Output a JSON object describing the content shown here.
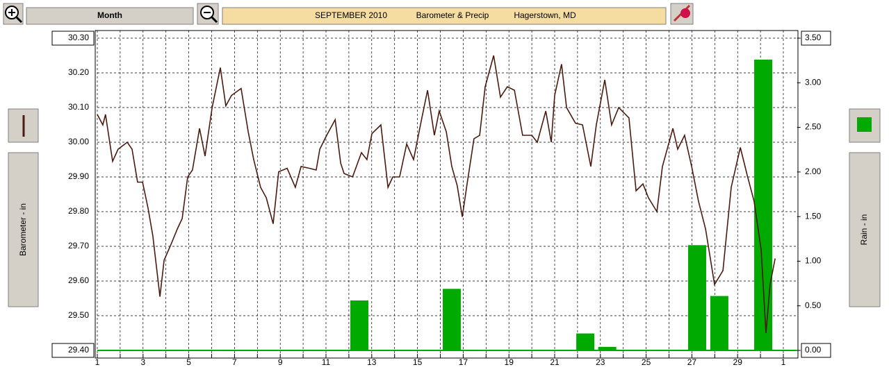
{
  "chart_data": {
    "type": "combo",
    "toolbar_label": "Month",
    "title": "SEPTEMBER  2010",
    "subtitle": "Barometer & Precip",
    "location": "Hagerstown, MD",
    "ylabel": "Barometer - in",
    "y2label": "Rain - in",
    "xlim": [
      1,
      31.6
    ],
    "xticks": [
      1,
      3,
      5,
      7,
      9,
      11,
      13,
      15,
      17,
      19,
      21,
      23,
      25,
      27,
      29,
      {
        "value": 31,
        "label": "1"
      }
    ],
    "xminor_ticks": [
      2,
      4,
      6,
      8,
      10,
      12,
      14,
      16,
      18,
      20,
      22,
      24,
      26,
      28,
      30
    ],
    "ylim": [
      29.4,
      30.3
    ],
    "yticks": [
      {
        "value": 29.4,
        "label": "29.40"
      },
      {
        "value": 29.5,
        "label": "29.50"
      },
      {
        "value": 29.6,
        "label": "29.60"
      },
      {
        "value": 29.7,
        "label": "29.70"
      },
      {
        "value": 29.8,
        "label": "29.80"
      },
      {
        "value": 29.9,
        "label": "29.90"
      },
      {
        "value": 30.0,
        "label": "30.00"
      },
      {
        "value": 30.1,
        "label": "30.10"
      },
      {
        "value": 30.2,
        "label": "30.20"
      },
      {
        "value": 30.3,
        "label": "30.30"
      }
    ],
    "y2lim": [
      0,
      3.5
    ],
    "y2ticks": [
      {
        "value": 0,
        "label": "0.00"
      },
      {
        "value": 0.5,
        "label": "0.50"
      },
      {
        "value": 1,
        "label": "1.00"
      },
      {
        "value": 1.5,
        "label": "1.50"
      },
      {
        "value": 2,
        "label": "2.00"
      },
      {
        "value": 2.5,
        "label": "2.50"
      },
      {
        "value": 3,
        "label": "3.00"
      },
      {
        "value": 3.5,
        "label": "3.50"
      }
    ],
    "grid": true,
    "series": [
      {
        "type": "line",
        "color": "#4a1a10",
        "x": [
          1.0,
          1.24,
          1.36,
          1.67,
          1.91,
          2.31,
          2.52,
          2.76,
          2.98,
          3.22,
          3.43,
          3.74,
          3.92,
          4.22,
          4.5,
          4.71,
          4.95,
          5.16,
          5.47,
          5.71,
          6.02,
          6.38,
          6.62,
          6.87,
          7.29,
          7.6,
          7.84,
          8.14,
          8.39,
          8.69,
          8.93,
          9.3,
          9.66,
          9.91,
          10.27,
          10.57,
          10.73,
          11.03,
          11.4,
          11.64,
          11.79,
          12.16,
          12.55,
          12.79,
          13.01,
          13.4,
          13.71,
          13.92,
          14.22,
          14.53,
          14.83,
          15.13,
          15.44,
          15.74,
          15.95,
          16.26,
          16.5,
          16.74,
          16.96,
          17.17,
          17.47,
          17.72,
          17.96,
          18.33,
          18.63,
          18.93,
          19.24,
          19.6,
          20.0,
          20.24,
          20.61,
          20.85,
          21.0,
          21.3,
          21.52,
          21.91,
          22.22,
          22.58,
          22.82,
          23.19,
          23.49,
          23.8,
          24.25,
          24.56,
          24.86,
          25.1,
          25.47,
          25.71,
          26.17,
          26.38,
          26.68,
          26.99,
          27.29,
          27.6,
          27.99,
          28.36,
          28.72,
          29.12,
          29.42,
          29.72,
          30.03,
          30.24,
          30.42,
          30.64
        ],
        "values": [
          30.08,
          30.05,
          30.08,
          29.945,
          29.98,
          30.0,
          29.98,
          29.885,
          29.885,
          29.81,
          29.73,
          29.555,
          29.66,
          29.705,
          29.75,
          29.78,
          29.9,
          29.92,
          30.04,
          29.96,
          30.1,
          30.215,
          30.105,
          30.135,
          30.155,
          30.03,
          29.95,
          29.87,
          29.84,
          29.765,
          29.915,
          29.925,
          29.87,
          29.93,
          29.925,
          29.92,
          29.98,
          30.02,
          30.065,
          29.94,
          29.91,
          29.9,
          29.97,
          29.95,
          30.025,
          30.05,
          29.87,
          29.9,
          29.9,
          29.995,
          29.95,
          30.05,
          30.15,
          30.02,
          30.09,
          30.03,
          29.93,
          29.875,
          29.785,
          29.88,
          30.01,
          30.02,
          30.16,
          30.25,
          30.13,
          30.16,
          30.15,
          30.02,
          30.02,
          30.0,
          30.09,
          30.0,
          30.135,
          30.225,
          30.1,
          30.055,
          30.05,
          29.93,
          30.05,
          30.18,
          30.05,
          30.1,
          30.07,
          29.86,
          29.88,
          29.84,
          29.8,
          29.93,
          30.04,
          29.98,
          30.02,
          29.93,
          29.83,
          29.75,
          29.59,
          29.63,
          29.87,
          29.985,
          29.905,
          29.83,
          29.69,
          29.45,
          29.59,
          29.665
        ]
      },
      {
        "type": "bar",
        "axis": "y2",
        "color": "#00aa00",
        "x": [
          12.46,
          16.5,
          22.34,
          23.3,
          27.23,
          28.2,
          30.12
        ],
        "values": [
          0.56,
          0.69,
          0.19,
          0.04,
          1.18,
          0.61,
          3.26
        ]
      }
    ]
  }
}
